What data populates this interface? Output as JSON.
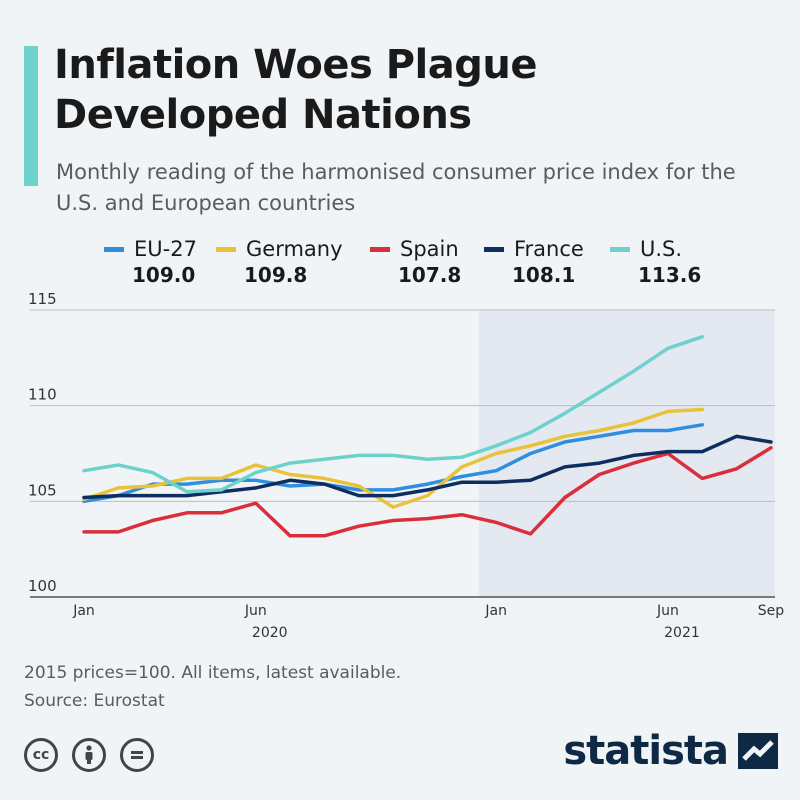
{
  "title": "Inflation Woes Plague Developed Nations",
  "subtitle": "Monthly reading of the harmonised consumer price index for the U.S. and European countries",
  "legend": [
    {
      "name": "EU-27",
      "value": "109.0",
      "color": "#2e8fe0"
    },
    {
      "name": "Germany",
      "value": "109.8",
      "color": "#e9c23c"
    },
    {
      "name": "Spain",
      "value": "107.8",
      "color": "#d92e3c"
    },
    {
      "name": "France",
      "value": "108.1",
      "color": "#0d2e5e"
    },
    {
      "name": "U.S.",
      "value": "113.6",
      "color": "#6dd2cc"
    }
  ],
  "footnote": "2015 prices=100. All items, latest available.",
  "source": "Source: Eurostat",
  "brand": "statista",
  "icons": [
    "cc-icon",
    "attribution-icon",
    "no-derivatives-icon"
  ],
  "chart_data": {
    "type": "line",
    "x": [
      "2020-01",
      "2020-02",
      "2020-03",
      "2020-04",
      "2020-05",
      "2020-06",
      "2020-07",
      "2020-08",
      "2020-09",
      "2020-10",
      "2020-11",
      "2020-12",
      "2021-01",
      "2021-02",
      "2021-03",
      "2021-04",
      "2021-05",
      "2021-06",
      "2021-07",
      "2021-08",
      "2021-09"
    ],
    "x_tick_labels": [
      "Jan",
      "Jun",
      "Jan",
      "Jun",
      "Sep"
    ],
    "x_tick_positions": [
      "2020-01",
      "2020-06",
      "2021-01",
      "2021-06",
      "2021-09"
    ],
    "x_group_labels": [
      {
        "label": "2020",
        "at": "2020-06"
      },
      {
        "label": "2021",
        "at": "2021-06"
      }
    ],
    "ylim": [
      100,
      115
    ],
    "y_ticks": [
      100,
      105,
      110,
      115
    ],
    "shaded_region": [
      "2020-12",
      "2021-09"
    ],
    "series": [
      {
        "name": "EU-27",
        "color": "#2e8fe0",
        "values": [
          105.0,
          105.3,
          105.9,
          105.9,
          106.1,
          106.1,
          105.8,
          105.9,
          105.6,
          105.6,
          105.9,
          106.3,
          106.6,
          107.5,
          108.1,
          108.4,
          108.7,
          108.7,
          109.0,
          null,
          null
        ]
      },
      {
        "name": "Germany",
        "color": "#e9c23c",
        "values": [
          105.1,
          105.7,
          105.8,
          106.2,
          106.2,
          106.9,
          106.4,
          106.2,
          105.8,
          104.7,
          105.3,
          106.8,
          107.5,
          107.9,
          108.4,
          108.7,
          109.1,
          109.7,
          109.8,
          null,
          null
        ]
      },
      {
        "name": "Spain",
        "color": "#d92e3c",
        "values": [
          103.4,
          103.4,
          104.0,
          104.4,
          104.4,
          104.9,
          103.2,
          103.2,
          103.7,
          104.0,
          104.1,
          104.3,
          103.9,
          103.3,
          105.2,
          106.4,
          107.0,
          107.5,
          106.2,
          106.7,
          107.8
        ]
      },
      {
        "name": "France",
        "color": "#0d2e5e",
        "values": [
          105.2,
          105.3,
          105.3,
          105.3,
          105.5,
          105.7,
          106.1,
          105.9,
          105.3,
          105.3,
          105.6,
          106.0,
          106.0,
          106.1,
          106.8,
          107.0,
          107.4,
          107.6,
          107.6,
          108.4,
          108.1
        ]
      },
      {
        "name": "U.S.",
        "color": "#6dd2cc",
        "values": [
          106.6,
          106.9,
          106.5,
          105.5,
          105.6,
          106.5,
          107.0,
          107.2,
          107.4,
          107.4,
          107.2,
          107.3,
          107.9,
          108.6,
          109.6,
          110.7,
          111.8,
          113.0,
          113.6,
          null,
          null
        ]
      }
    ]
  }
}
